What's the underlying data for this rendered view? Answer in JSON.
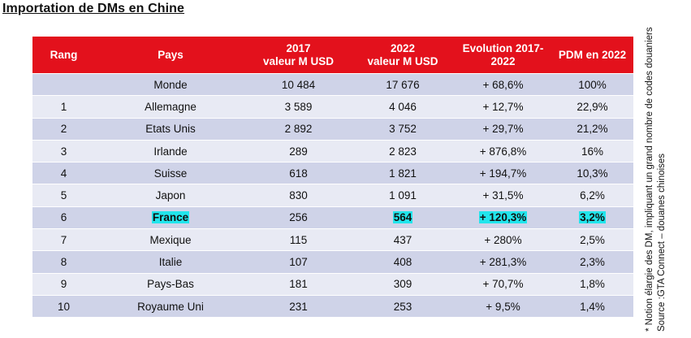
{
  "title": "Importation de DMs en Chine",
  "header": {
    "rang": "Rang",
    "pays": "Pays",
    "v2017_l1": "2017",
    "v2017_l2": "valeur M USD",
    "v2022_l1": "2022",
    "v2022_l2": "valeur M USD",
    "evo_l1": "Evolution 2017-",
    "evo_l2": "2022",
    "pdm": "PDM en 2022"
  },
  "rows": [
    {
      "rang": "",
      "pays": "Monde",
      "v2017": "10 484",
      "v2022": "17 676",
      "evo": "+ 68,6%",
      "pdm": "100%"
    },
    {
      "rang": "1",
      "pays": "Allemagne",
      "v2017": "3 589",
      "v2022": "4 046",
      "evo": "+ 12,7%",
      "pdm": "22,9%"
    },
    {
      "rang": "2",
      "pays": "Etats Unis",
      "v2017": "2 892",
      "v2022": "3 752",
      "evo": "+ 29,7%",
      "pdm": "21,2%"
    },
    {
      "rang": "3",
      "pays": "Irlande",
      "v2017": "289",
      "v2022": "2 823",
      "evo": "+ 876,8%",
      "pdm": "16%"
    },
    {
      "rang": "4",
      "pays": "Suisse",
      "v2017": "618",
      "v2022": "1 821",
      "evo": "+ 194,7%",
      "pdm": "10,3%"
    },
    {
      "rang": "5",
      "pays": "Japon",
      "v2017": "830",
      "v2022": "1 091",
      "evo": "+ 31,5%",
      "pdm": "6,2%"
    },
    {
      "rang": "6",
      "pays": "France",
      "v2017": "256",
      "v2022": "564",
      "evo": "+ 120,3%",
      "pdm": "3,2%"
    },
    {
      "rang": "7",
      "pays": "Mexique",
      "v2017": "115",
      "v2022": "437",
      "evo": "+ 280%",
      "pdm": "2,5%"
    },
    {
      "rang": "8",
      "pays": "Italie",
      "v2017": "107",
      "v2022": "408",
      "evo": "+ 281,3%",
      "pdm": "2,3%"
    },
    {
      "rang": "9",
      "pays": "Pays-Bas",
      "v2017": "181",
      "v2022": "309",
      "evo": "+ 70,7%",
      "pdm": "1,8%"
    },
    {
      "rang": "10",
      "pays": "Royaume Uni",
      "v2017": "231",
      "v2022": "253",
      "evo": "+ 9,5%",
      "pdm": "1,4%"
    }
  ],
  "colors": {
    "header_bg": "#e3111c",
    "row_dark": "#cfd3e8",
    "row_light": "#e8eaf4",
    "highlight": "#22e5ec"
  },
  "footnote": {
    "line1": "* Notion élargie des DM, impliquant un grand nombre de codes douaniers",
    "line2": "Source :GTA Connect – douanes chinoises"
  }
}
